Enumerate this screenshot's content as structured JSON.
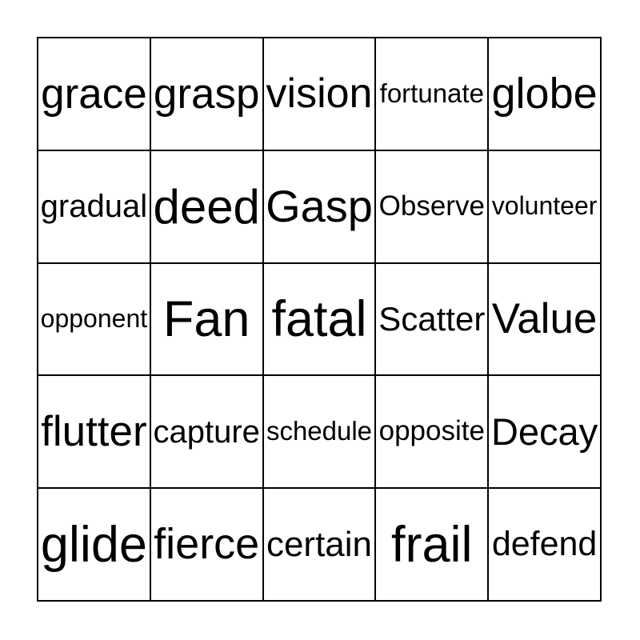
{
  "page": {
    "background_color": "#ffffff"
  },
  "card": {
    "kind": "word-bingo-card",
    "rows": 5,
    "cols": 5,
    "grid_line_color": "#000000",
    "text_color": "#000000",
    "cell_background": "#ffffff",
    "grid": [
      [
        "grace",
        "grasp",
        "vision",
        "fortunate",
        "globe"
      ],
      [
        "gradual",
        "deed",
        "Gasp",
        "Observe",
        "volunteer"
      ],
      [
        "opponent",
        "Fan",
        "fatal",
        "Scatter",
        "Value"
      ],
      [
        "flutter",
        "capture",
        "schedule",
        "opposite",
        "Decay"
      ],
      [
        "glide",
        "fierce",
        "certain",
        "frail",
        "defend"
      ]
    ]
  }
}
